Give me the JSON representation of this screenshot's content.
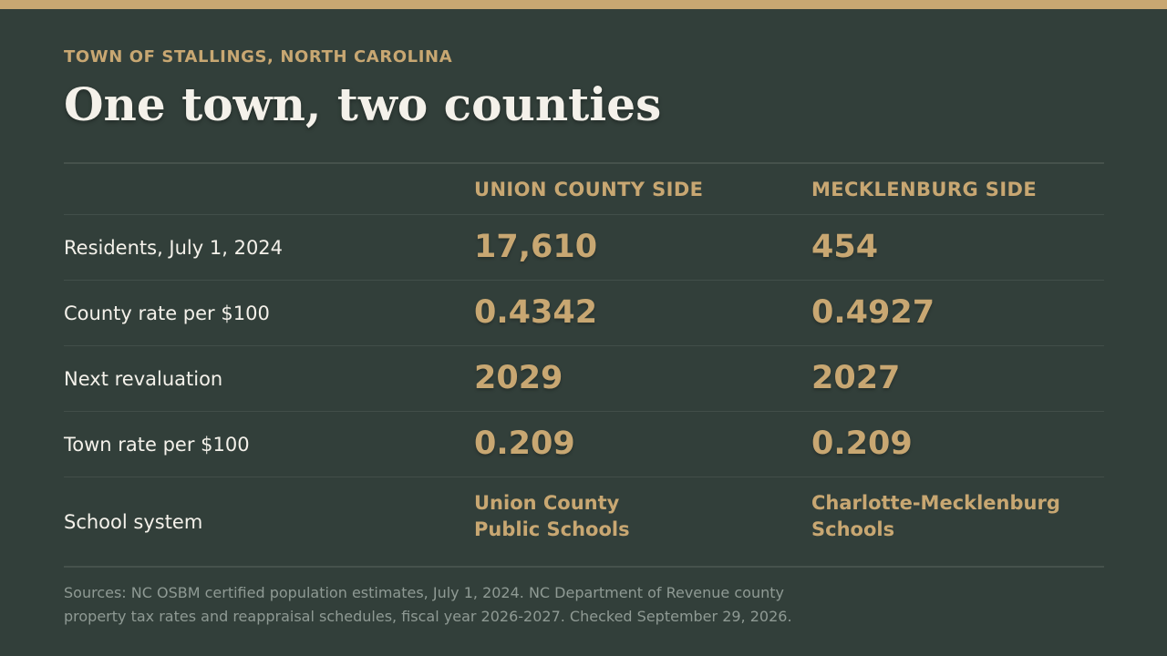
{
  "colors": {
    "background": "#323f3a",
    "accent": "#c8a772",
    "title": "#f4f1ea",
    "muted": "#8f9a94"
  },
  "header": {
    "kicker": "TOWN OF STALLINGS, NORTH CAROLINA",
    "title": "One town, two counties"
  },
  "table": {
    "columns": [
      "UNION COUNTY SIDE",
      "MECKLENBURG SIDE"
    ],
    "rows": [
      {
        "label": "Residents, July 1, 2024",
        "union": "17,610",
        "mecklenburg": "454"
      },
      {
        "label": "County rate per $100",
        "union": "0.4342",
        "mecklenburg": "0.4927"
      },
      {
        "label": "Next revaluation",
        "union": "2029",
        "mecklenburg": "2027"
      },
      {
        "label": "Town rate per $100",
        "union": "0.209",
        "mecklenburg": "0.209"
      },
      {
        "label": "School system",
        "union_lines": [
          "Union County",
          "Public Schools"
        ],
        "mecklenburg_lines": [
          "Charlotte-Mecklenburg",
          "Schools"
        ]
      }
    ]
  },
  "sources": {
    "lines": [
      "Sources: NC OSBM certified population estimates, July 1, 2024. NC Department of Revenue county",
      "property tax rates and reappraisal schedules, fiscal year 2026-2027. Checked September 29, 2026."
    ]
  }
}
